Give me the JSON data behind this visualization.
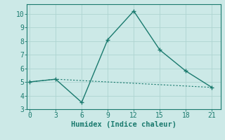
{
  "title": "",
  "xlabel": "Humidex (Indice chaleur)",
  "ylabel": "",
  "background_color": "#cce9e7",
  "grid_color": "#aed4d1",
  "line_color": "#1a7a6e",
  "x_main": [
    0,
    3,
    6,
    9,
    12,
    15,
    18,
    21
  ],
  "y_main": [
    5.0,
    5.2,
    3.5,
    8.1,
    10.2,
    7.35,
    5.8,
    4.6
  ],
  "x_flat": [
    0,
    3,
    6,
    9,
    12,
    15,
    18,
    21
  ],
  "y_flat": [
    5.0,
    5.2,
    5.1,
    5.0,
    4.9,
    4.8,
    4.7,
    4.6
  ],
  "xlim": [
    -0.3,
    22.0
  ],
  "ylim": [
    3.0,
    10.7
  ],
  "xticks": [
    0,
    3,
    6,
    9,
    12,
    15,
    18,
    21
  ],
  "yticks": [
    3,
    4,
    5,
    6,
    7,
    8,
    9,
    10
  ],
  "fontsize_label": 7.5,
  "fontsize_tick": 7.0
}
